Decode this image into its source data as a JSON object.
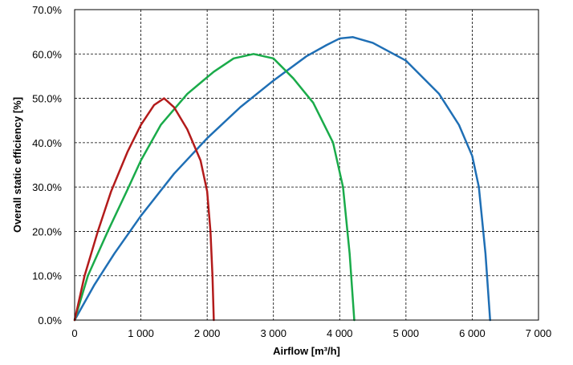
{
  "chart_data": {
    "type": "line",
    "title": "",
    "xlabel": "Airflow [m³/h]",
    "ylabel": "Overall static efficiency [%]",
    "xlim": [
      0,
      7000
    ],
    "ylim": [
      0,
      70
    ],
    "x_ticks": [
      0,
      1000,
      2000,
      3000,
      4000,
      5000,
      6000,
      7000
    ],
    "x_tick_labels": [
      "0",
      "1 000",
      "2 000",
      "3 000",
      "4 000",
      "5 000",
      "6 000",
      "7 000"
    ],
    "y_ticks": [
      0,
      10,
      20,
      30,
      40,
      50,
      60,
      70
    ],
    "y_tick_labels": [
      "0.0%",
      "10.0%",
      "20.0%",
      "30.0%",
      "40.0%",
      "50.0%",
      "60.0%",
      "70.0%"
    ],
    "grid": true,
    "legend": "none",
    "series": [
      {
        "color": "#1f6fb5",
        "points": [
          [
            0,
            0
          ],
          [
            300,
            8
          ],
          [
            600,
            15
          ],
          [
            1000,
            23.5
          ],
          [
            1500,
            33
          ],
          [
            2000,
            41
          ],
          [
            2500,
            48
          ],
          [
            3000,
            54
          ],
          [
            3500,
            59.5
          ],
          [
            3800,
            62
          ],
          [
            4000,
            63.5
          ],
          [
            4200,
            63.8
          ],
          [
            4500,
            62.5
          ],
          [
            5000,
            58.5
          ],
          [
            5500,
            51
          ],
          [
            5800,
            44
          ],
          [
            6000,
            37
          ],
          [
            6100,
            30
          ],
          [
            6200,
            15
          ],
          [
            6270,
            0
          ]
        ]
      },
      {
        "color": "#1aab4a",
        "points": [
          [
            0,
            0
          ],
          [
            200,
            10
          ],
          [
            500,
            20
          ],
          [
            800,
            29.5
          ],
          [
            1000,
            36
          ],
          [
            1300,
            44
          ],
          [
            1700,
            51
          ],
          [
            2100,
            56
          ],
          [
            2400,
            59
          ],
          [
            2700,
            60
          ],
          [
            3000,
            59
          ],
          [
            3300,
            54.5
          ],
          [
            3600,
            49
          ],
          [
            3900,
            40
          ],
          [
            4050,
            30
          ],
          [
            4150,
            15
          ],
          [
            4220,
            0
          ]
        ]
      },
      {
        "color": "#b31b1b",
        "points": [
          [
            0,
            0
          ],
          [
            150,
            10
          ],
          [
            350,
            20
          ],
          [
            550,
            29
          ],
          [
            800,
            38
          ],
          [
            1000,
            44
          ],
          [
            1200,
            48.5
          ],
          [
            1350,
            50
          ],
          [
            1500,
            48
          ],
          [
            1700,
            43
          ],
          [
            1900,
            36
          ],
          [
            2000,
            29
          ],
          [
            2050,
            20
          ],
          [
            2080,
            10
          ],
          [
            2100,
            0
          ]
        ]
      }
    ]
  }
}
